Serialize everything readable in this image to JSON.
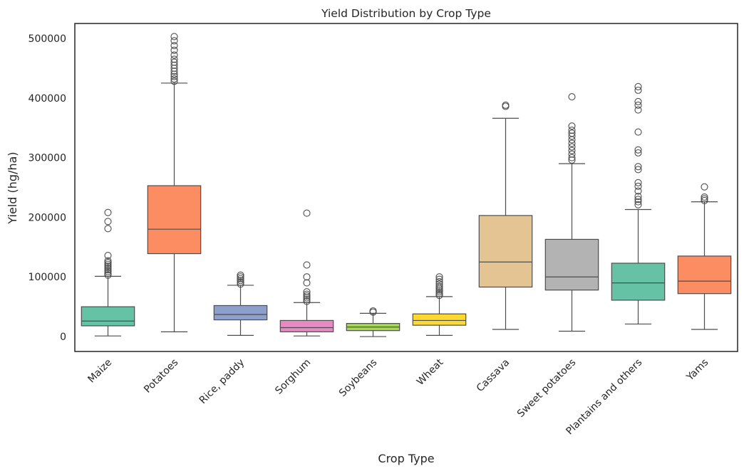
{
  "chart_data": {
    "type": "box",
    "title": "Yield Distribution by Crop Type",
    "xlabel": "Crop Type",
    "ylabel": "Yield (hg/ha)",
    "ylim": [
      -25000,
      525000
    ],
    "yticks": [
      "0",
      "100000",
      "200000",
      "300000",
      "400000",
      "500000"
    ],
    "ytick_values": [
      0,
      100000,
      200000,
      300000,
      400000,
      500000
    ],
    "grid": false,
    "categories": [
      "Maize",
      "Potatoes",
      "Rice, paddy",
      "Sorghum",
      "Soybeans",
      "Wheat",
      "Cassava",
      "Sweet potatoes",
      "Plantains and others",
      "Yams"
    ],
    "series": [
      {
        "category": "Maize",
        "color": "#66c2a5",
        "min": 1000,
        "q1": 18000,
        "median": 26000,
        "q3": 50000,
        "max": 101000,
        "outliers": [
          103000,
          106000,
          109000,
          112000,
          115000,
          118000,
          121000,
          124000,
          127000,
          136000,
          181000,
          193000,
          208000
        ]
      },
      {
        "category": "Potatoes",
        "color": "#fc8d62",
        "min": 8000,
        "q1": 139000,
        "median": 180000,
        "q3": 253000,
        "max": 425000,
        "outliers": [
          428000,
          432000,
          436000,
          440000,
          445000,
          450000,
          455000,
          460000,
          465000,
          472000,
          480000,
          488000,
          496000,
          503000
        ]
      },
      {
        "category": "Rice, paddy",
        "color": "#8da0cb",
        "min": 2000,
        "q1": 28000,
        "median": 37000,
        "q3": 52000,
        "max": 86000,
        "outliers": [
          88000,
          91000,
          94000,
          97000,
          100000,
          103000
        ]
      },
      {
        "category": "Sorghum",
        "color": "#e78ac3",
        "min": 1000,
        "q1": 8000,
        "median": 15000,
        "q3": 27000,
        "max": 57000,
        "outliers": [
          59000,
          62000,
          65000,
          68000,
          71000,
          75000,
          90000,
          100000,
          120000,
          207000
        ]
      },
      {
        "category": "Soybeans",
        "color": "#a6d854",
        "min": 0,
        "q1": 10000,
        "median": 16000,
        "q3": 22000,
        "max": 39000,
        "outliers": [
          41000,
          43000
        ]
      },
      {
        "category": "Wheat",
        "color": "#ffd92f",
        "min": 2000,
        "q1": 19000,
        "median": 27000,
        "q3": 38000,
        "max": 67000,
        "outliers": [
          69000,
          72000,
          75000,
          78000,
          81000,
          84000,
          88000,
          92000,
          96000,
          100000
        ]
      },
      {
        "category": "Cassava",
        "color": "#e5c494",
        "min": 12000,
        "q1": 83000,
        "median": 125000,
        "q3": 203000,
        "max": 366000,
        "outliers": [
          386000,
          388000
        ]
      },
      {
        "category": "Sweet potatoes",
        "color": "#b3b3b3",
        "min": 9000,
        "q1": 78000,
        "median": 100000,
        "q3": 163000,
        "max": 290000,
        "outliers": [
          296000,
          300000,
          306000,
          312000,
          318000,
          324000,
          330000,
          336000,
          341000,
          346000,
          353000,
          402000
        ]
      },
      {
        "category": "Plantains and others",
        "color": "#66c2a5",
        "min": 21000,
        "q1": 61000,
        "median": 90000,
        "q3": 123000,
        "max": 213000,
        "outliers": [
          221000,
          226000,
          230000,
          235000,
          244000,
          252000,
          258000,
          280000,
          285000,
          308000,
          313000,
          343000,
          380000,
          388000,
          394000,
          413000,
          419000
        ]
      },
      {
        "category": "Yams",
        "color": "#fc8d62",
        "min": 12000,
        "q1": 72000,
        "median": 93000,
        "q3": 135000,
        "max": 226000,
        "outliers": [
          228000,
          231000,
          234000,
          251000
        ]
      }
    ]
  }
}
